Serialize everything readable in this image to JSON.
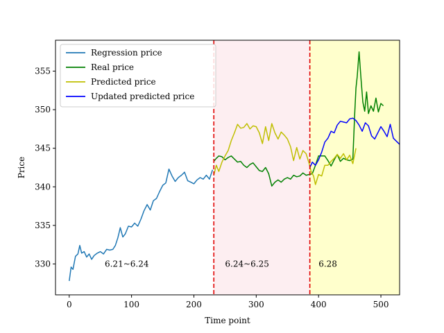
{
  "chart_data": {
    "type": "line",
    "title": "",
    "xlabel": "Time point",
    "ylabel": "Price",
    "xlim": [
      -22,
      530
    ],
    "ylim": [
      326,
      359
    ],
    "xticks": [
      0,
      100,
      200,
      300,
      400,
      500
    ],
    "yticks": [
      330,
      335,
      340,
      345,
      350,
      355
    ],
    "legend_position": "top-left",
    "grid": false,
    "regions": [
      {
        "x0": 232,
        "x1": 386,
        "color": "#fdeef1",
        "label": "6.24~6.25",
        "label_x": 250,
        "label_y": 330
      },
      {
        "x0": 386,
        "x1": 530,
        "color": "#ffffcc",
        "label": "6.28",
        "label_x": 400,
        "label_y": 330
      }
    ],
    "annotations": [
      {
        "text": "6.21~6.24",
        "x": 57,
        "y": 330
      }
    ],
    "vlines": [
      {
        "x": 232,
        "color": "#e00000",
        "style": "dashed"
      },
      {
        "x": 386,
        "color": "#e00000",
        "style": "dashed"
      }
    ],
    "series": [
      {
        "name": "Regression price",
        "color": "#1f77b4",
        "x": [
          0,
          3,
          6,
          10,
          14,
          17,
          20,
          24,
          28,
          32,
          36,
          40,
          45,
          50,
          55,
          60,
          65,
          70,
          74,
          78,
          82,
          86,
          90,
          95,
          100,
          105,
          110,
          115,
          120,
          125,
          130,
          135,
          140,
          145,
          150,
          155,
          160,
          165,
          170,
          175,
          180,
          185,
          190,
          195,
          200,
          205,
          210,
          215,
          220,
          225,
          230
        ],
        "values": [
          327.8,
          329.6,
          329.3,
          331.0,
          331.3,
          332.4,
          331.4,
          331.6,
          330.9,
          331.3,
          330.6,
          331.1,
          331.4,
          331.6,
          331.3,
          331.9,
          331.8,
          331.9,
          332.4,
          333.4,
          334.7,
          333.5,
          333.9,
          334.9,
          334.8,
          335.3,
          334.9,
          335.8,
          336.9,
          337.7,
          337.0,
          338.2,
          338.5,
          339.4,
          340.2,
          340.5,
          342.3,
          341.4,
          340.7,
          341.2,
          341.5,
          341.9,
          340.8,
          340.6,
          340.4,
          340.9,
          341.2,
          341.0,
          341.5,
          341.0,
          342.2
        ]
      },
      {
        "name": "Real price",
        "color": "#008000",
        "x": [
          232,
          236,
          240,
          245,
          250,
          255,
          260,
          265,
          270,
          275,
          280,
          285,
          290,
          295,
          300,
          305,
          310,
          315,
          320,
          325,
          330,
          335,
          340,
          345,
          350,
          355,
          360,
          365,
          370,
          375,
          380,
          385,
          390,
          395,
          400,
          405,
          410,
          415,
          420,
          425,
          430,
          435,
          440,
          445,
          450,
          455,
          458,
          460,
          462,
          465,
          468,
          471,
          474,
          477,
          480,
          484,
          488,
          492,
          496,
          500,
          504
        ],
        "values": [
          343.3,
          343.7,
          344.0,
          343.9,
          343.5,
          343.8,
          344.0,
          343.6,
          343.2,
          343.3,
          342.8,
          342.5,
          342.9,
          343.1,
          342.6,
          342.1,
          342.0,
          342.5,
          341.7,
          340.1,
          340.6,
          340.9,
          340.6,
          341.0,
          341.2,
          341.0,
          341.5,
          341.3,
          341.4,
          341.8,
          341.5,
          341.6,
          341.7,
          342.8,
          344.0,
          344.0,
          344.0,
          343.4,
          342.7,
          343.5,
          344.2,
          343.3,
          343.7,
          343.5,
          343.4,
          343.6,
          349.5,
          352.8,
          354.3,
          357.5,
          354.1,
          351.0,
          349.8,
          352.3,
          349.5,
          350.5,
          349.8,
          351.5,
          349.7,
          350.8,
          350.5
        ]
      },
      {
        "name": "Predicted price",
        "color": "#bfbf00",
        "x": [
          232,
          236,
          240,
          245,
          250,
          255,
          260,
          265,
          270,
          275,
          280,
          285,
          290,
          295,
          300,
          305,
          310,
          315,
          320,
          325,
          330,
          335,
          340,
          345,
          350,
          355,
          360,
          365,
          370,
          375,
          380,
          385,
          388,
          392,
          395,
          400,
          405,
          410,
          415,
          420,
          425,
          430,
          435,
          440,
          445,
          450,
          455,
          460
        ],
        "values": [
          341.5,
          342.8,
          342.0,
          343.2,
          344.0,
          344.7,
          346.0,
          347.0,
          348.1,
          347.6,
          347.7,
          348.2,
          347.5,
          347.9,
          347.8,
          347.0,
          345.6,
          347.8,
          346.0,
          348.2,
          347.0,
          346.2,
          347.1,
          346.7,
          346.2,
          345.2,
          343.4,
          345.1,
          343.6,
          344.7,
          344.3,
          343.0,
          342.0,
          341.4,
          340.3,
          341.6,
          341.4,
          342.8,
          342.8,
          343.3,
          343.7,
          344.2,
          343.7,
          344.3,
          343.5,
          344.1,
          343.0,
          345.0
        ]
      },
      {
        "name": "Updated predicted price",
        "color": "#0000ff",
        "x": [
          386,
          390,
          395,
          400,
          405,
          410,
          415,
          420,
          425,
          430,
          435,
          440,
          445,
          450,
          455,
          460,
          465,
          470,
          475,
          480,
          485,
          490,
          495,
          500,
          505,
          510,
          515,
          520,
          525,
          530
        ],
        "values": [
          342.5,
          343.2,
          342.8,
          343.5,
          344.5,
          345.8,
          346.3,
          347.2,
          347.0,
          348.0,
          348.5,
          348.4,
          348.3,
          348.8,
          348.9,
          348.6,
          348.0,
          347.2,
          348.3,
          347.9,
          346.6,
          346.2,
          347.0,
          347.8,
          347.2,
          346.5,
          348.1,
          346.3,
          345.9,
          345.5
        ]
      }
    ]
  }
}
